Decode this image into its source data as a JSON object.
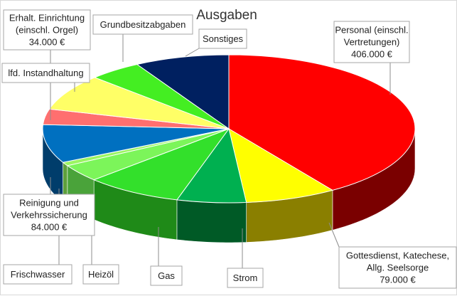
{
  "chart_data": {
    "type": "pie",
    "title": "Ausgaben",
    "slices": [
      {
        "label": "Personal (einschl. Vertretungen)",
        "value": 406000,
        "value_label": "406.000 €",
        "color": "#ff0000",
        "side_color": "#7a0000"
      },
      {
        "label": "Gottesdienst, Katechese, Allg. Seelsorge",
        "value": 79000,
        "value_label": "79.000 €",
        "color": "#ffff00",
        "side_color": "#8a7f00"
      },
      {
        "label": "Strom",
        "value": 60000,
        "value_label": "",
        "color": "#00b050",
        "side_color": "#005a26"
      },
      {
        "label": "Gas",
        "value": 84000,
        "value_label": "",
        "color": "#33e02b",
        "side_color": "#1f8a18"
      },
      {
        "label": "Heizöl",
        "value": 38000,
        "value_label": "",
        "color": "#7cf55a",
        "side_color": "#4aa33a"
      },
      {
        "label": "Frischwasser",
        "value": 8000,
        "value_label": "",
        "color": "#9bf562",
        "side_color": "#5ea03c"
      },
      {
        "label": "Reinigung und Verkehrssicherung",
        "value": 84000,
        "value_label": "84.000 €",
        "color": "#0070c0",
        "side_color": "#003d6b"
      },
      {
        "label": "Erhalt. Einrichtung (einschl. Orgel)",
        "value": 34000,
        "value_label": "34.000 €",
        "color": "#ff6f6f",
        "side_color": "#a03a3a"
      },
      {
        "label": "lfd. Instandhaltung",
        "value": 79000,
        "value_label": "",
        "color": "#ffff66",
        "side_color": "#999933"
      },
      {
        "label": "Grundbesitzabgaben",
        "value": 46000,
        "value_label": "",
        "color": "#44ee22",
        "side_color": "#2a8a14"
      },
      {
        "label": "Sonstiges",
        "value": 82000,
        "value_label": "",
        "color": "#002060",
        "side_color": "#001030"
      }
    ],
    "legend": "none",
    "callouts": [
      {
        "slice": 0,
        "lines": [
          "Personal (einschl.",
          "Vertretungen)",
          "406.000 €"
        ]
      },
      {
        "slice": 1,
        "lines": [
          "Gottesdienst, Katechese,",
          "Allg. Seelsorge",
          "79.000 €"
        ]
      },
      {
        "slice": 2,
        "lines": [
          "Strom"
        ]
      },
      {
        "slice": 3,
        "lines": [
          "Gas"
        ]
      },
      {
        "slice": 4,
        "lines": [
          "Heizöl"
        ]
      },
      {
        "slice": 5,
        "lines": [
          "Frischwasser"
        ]
      },
      {
        "slice": 6,
        "lines": [
          "Reinigung und",
          "Verkehrssicherung",
          "84.000 €"
        ]
      },
      {
        "slice": 7,
        "lines": [
          "Erhalt. Einrichtung",
          "(einschl. Orgel)",
          "34.000 €"
        ]
      },
      {
        "slice": 8,
        "lines": [
          "lfd. Instandhaltung"
        ]
      },
      {
        "slice": 9,
        "lines": [
          "Grundbesitzabgaben"
        ]
      },
      {
        "slice": 10,
        "lines": [
          "Sonstiges"
        ]
      }
    ]
  }
}
